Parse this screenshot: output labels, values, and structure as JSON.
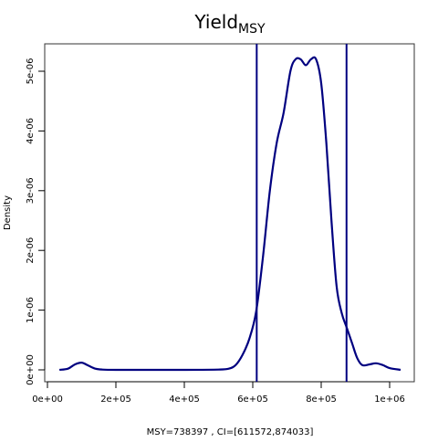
{
  "chart_data": {
    "type": "line",
    "title": "Yield",
    "title_subscript": "MSY",
    "xlabel": "MSY=738397 , CI=[611572,874033]",
    "ylabel": "Density",
    "xlim": [
      0,
      1050000
    ],
    "ylim": [
      0,
      5.2e-06
    ],
    "x_ticks": [
      {
        "value": 0,
        "label": "0e+00"
      },
      {
        "value": 200000,
        "label": "2e+05"
      },
      {
        "value": 400000,
        "label": "4e+05"
      },
      {
        "value": 600000,
        "label": "6e+05"
      },
      {
        "value": 800000,
        "label": "8e+05"
      },
      {
        "value": 1000000,
        "label": "1e+06"
      }
    ],
    "y_ticks": [
      {
        "value": 0,
        "label": "0e+00"
      },
      {
        "value": 1e-06,
        "label": "1e-06"
      },
      {
        "value": 2e-06,
        "label": "2e-06"
      },
      {
        "value": 3e-06,
        "label": "3e-06"
      },
      {
        "value": 4e-06,
        "label": "4e-06"
      },
      {
        "value": 5e-06,
        "label": "5e-06"
      }
    ],
    "grid": false,
    "legend": "none",
    "series": [
      {
        "color": "#000080",
        "x": [
          35000,
          60000,
          80000,
          100000,
          120000,
          140000,
          160000,
          200000,
          300000,
          400000,
          500000,
          530000,
          550000,
          570000,
          590000,
          610000,
          630000,
          650000,
          670000,
          690000,
          710000,
          725000,
          740000,
          755000,
          770000,
          785000,
          800000,
          815000,
          830000,
          845000,
          860000,
          875000,
          890000,
          905000,
          920000,
          940000,
          960000,
          980000,
          1000000,
          1032000
        ],
        "y": [
          0,
          2e-08,
          9e-08,
          1.2e-07,
          7e-08,
          2e-08,
          5e-09,
          0,
          0,
          0,
          5e-09,
          2e-08,
          8e-08,
          2.5e-07,
          5.2e-07,
          9.8e-07,
          1.9e-06,
          3e-06,
          3.8e-06,
          4.3e-06,
          5e-06,
          5.2e-06,
          5.2e-06,
          5.1e-06,
          5.2e-06,
          5.2e-06,
          4.8e-06,
          3.8e-06,
          2.5e-06,
          1.4e-06,
          9.5e-07,
          7e-07,
          4.5e-07,
          2e-07,
          8e-08,
          9e-08,
          1.1e-07,
          8e-08,
          3e-08,
          0
        ]
      }
    ],
    "vlines": [
      {
        "x": 611572,
        "color": "#000080"
      },
      {
        "x": 874033,
        "color": "#000080"
      }
    ],
    "axes_color": "#000000",
    "box_color": "#333333"
  }
}
